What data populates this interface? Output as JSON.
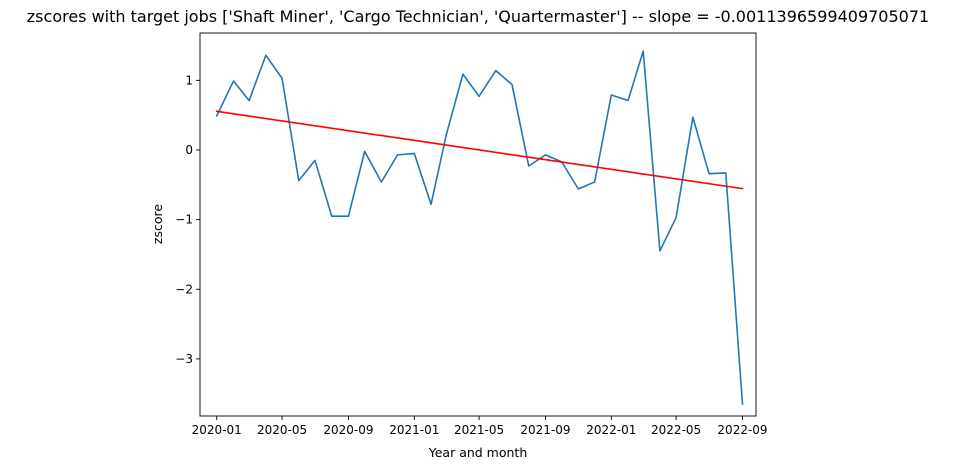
{
  "chart_data": {
    "type": "line",
    "title": "zscores with target jobs ['Shaft Miner', 'Cargo Technician', 'Quartermaster'] -- slope = -0.0011396599409705071",
    "xlabel": "Year and month",
    "ylabel": "zscore",
    "x_ticks": [
      "2020-01",
      "2020-05",
      "2020-09",
      "2021-01",
      "2021-05",
      "2021-09",
      "2022-01",
      "2022-05",
      "2022-09"
    ],
    "y_ticks": [
      "−3",
      "−2",
      "−1",
      "0",
      "1"
    ],
    "y_tick_values": [
      -3,
      -2,
      -1,
      0,
      1
    ],
    "xlim": [
      "2019-12-01",
      "2022-09-26"
    ],
    "ylim": [
      -3.82,
      1.68
    ],
    "grid": false,
    "legend": "none",
    "series": [
      {
        "color": "#1f77b4",
        "x": [
          "2020-01",
          "2020-02",
          "2020-03",
          "2020-04",
          "2020-05",
          "2020-06",
          "2020-07",
          "2020-08",
          "2020-09",
          "2020-10",
          "2020-11",
          "2020-12",
          "2021-01",
          "2021-02",
          "2021-03",
          "2021-04",
          "2021-05",
          "2021-06",
          "2021-07",
          "2021-08",
          "2021-09",
          "2021-10",
          "2021-11",
          "2021-12",
          "2022-01",
          "2022-02",
          "2022-03",
          "2022-04",
          "2022-05",
          "2022-06",
          "2022-07",
          "2022-08",
          "2022-09"
        ],
        "values": [
          0.49,
          0.99,
          0.71,
          1.36,
          1.03,
          -0.44,
          -0.15,
          -0.95,
          -0.95,
          -0.02,
          -0.46,
          -0.07,
          -0.05,
          -0.78,
          0.21,
          1.09,
          0.77,
          1.14,
          0.94,
          -0.23,
          -0.07,
          -0.17,
          -0.56,
          -0.46,
          0.79,
          0.71,
          1.42,
          -1.45,
          -0.97,
          0.47,
          -0.34,
          -0.33,
          -3.65
        ]
      },
      {
        "color": "#ff0000",
        "x": [
          "2020-01",
          "2022-09"
        ],
        "values": [
          0.555,
          -0.555
        ]
      }
    ]
  }
}
